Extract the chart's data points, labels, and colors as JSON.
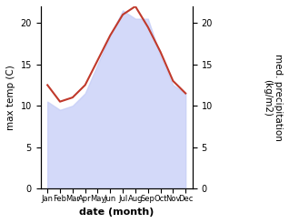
{
  "months": [
    "Jan",
    "Feb",
    "Mar",
    "Apr",
    "May",
    "Jun",
    "Jul",
    "Aug",
    "Sep",
    "Oct",
    "Nov",
    "Dec"
  ],
  "max_temp": [
    12.5,
    10.5,
    11.0,
    12.5,
    15.5,
    18.5,
    21.0,
    22.0,
    19.5,
    16.5,
    13.0,
    11.5
  ],
  "med_precip": [
    10.5,
    9.5,
    10.0,
    11.5,
    15.0,
    18.5,
    21.5,
    20.5,
    20.5,
    16.0,
    12.5,
    11.5
  ],
  "temp_ylim": [
    0,
    22
  ],
  "precip_ylim": [
    0,
    22
  ],
  "fill_color": "#c5cdf7",
  "fill_alpha": 0.75,
  "line_color": "#c0392b",
  "line_width": 1.5,
  "ylabel_left": "max temp (C)",
  "ylabel_right": "med. precipitation\n(kg/m2)",
  "xlabel": "date (month)",
  "bg_color": "#ffffff"
}
